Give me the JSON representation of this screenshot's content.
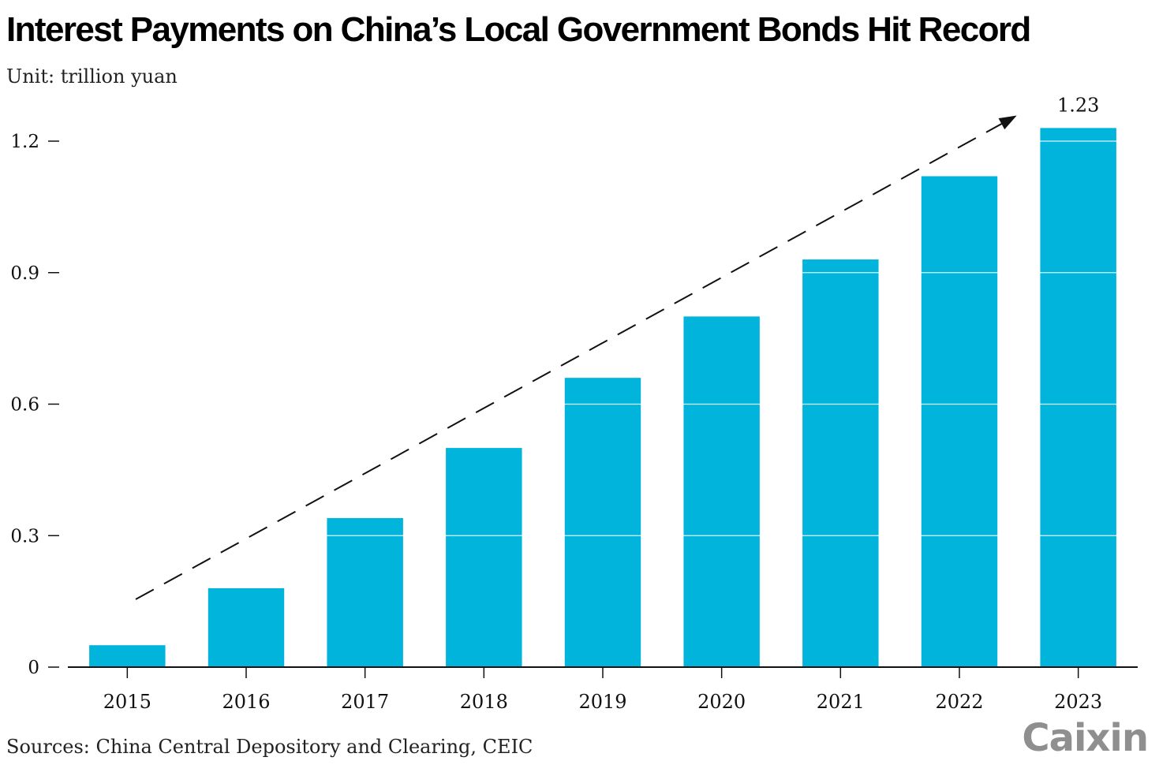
{
  "header": {
    "title": "Interest Payments on China’s Local Government Bonds Hit Record",
    "subtitle": "Unit: trillion yuan"
  },
  "footer": {
    "source": "Sources: China Central Depository and Clearing, CEIC",
    "logo": "Caixin"
  },
  "colors": {
    "bar": "#00b4dc",
    "text": "#111111",
    "arrow": "#111111",
    "logo": "#8f8f8f"
  },
  "chart_data": {
    "type": "bar",
    "title": "Interest Payments on China’s Local Government Bonds Hit Record",
    "subtitle": "Unit: trillion yuan",
    "categories": [
      "2015",
      "2016",
      "2017",
      "2018",
      "2019",
      "2020",
      "2021",
      "2022",
      "2023"
    ],
    "values": [
      0.05,
      0.18,
      0.34,
      0.5,
      0.66,
      0.8,
      0.93,
      1.12,
      1.23
    ],
    "ylim": [
      0,
      1.23
    ],
    "yticks": [
      "0",
      "0.3",
      "0.6",
      "0.9",
      "1.2"
    ],
    "ytick_values": [
      0,
      0.3,
      0.6,
      0.9,
      1.2
    ],
    "xlabel": "",
    "ylabel": "",
    "grid": true,
    "legend": "none",
    "annotations": [
      {
        "type": "value_label",
        "category": "2023",
        "text": "1.23"
      },
      {
        "type": "trend_arrow",
        "style": "dashed"
      }
    ]
  }
}
